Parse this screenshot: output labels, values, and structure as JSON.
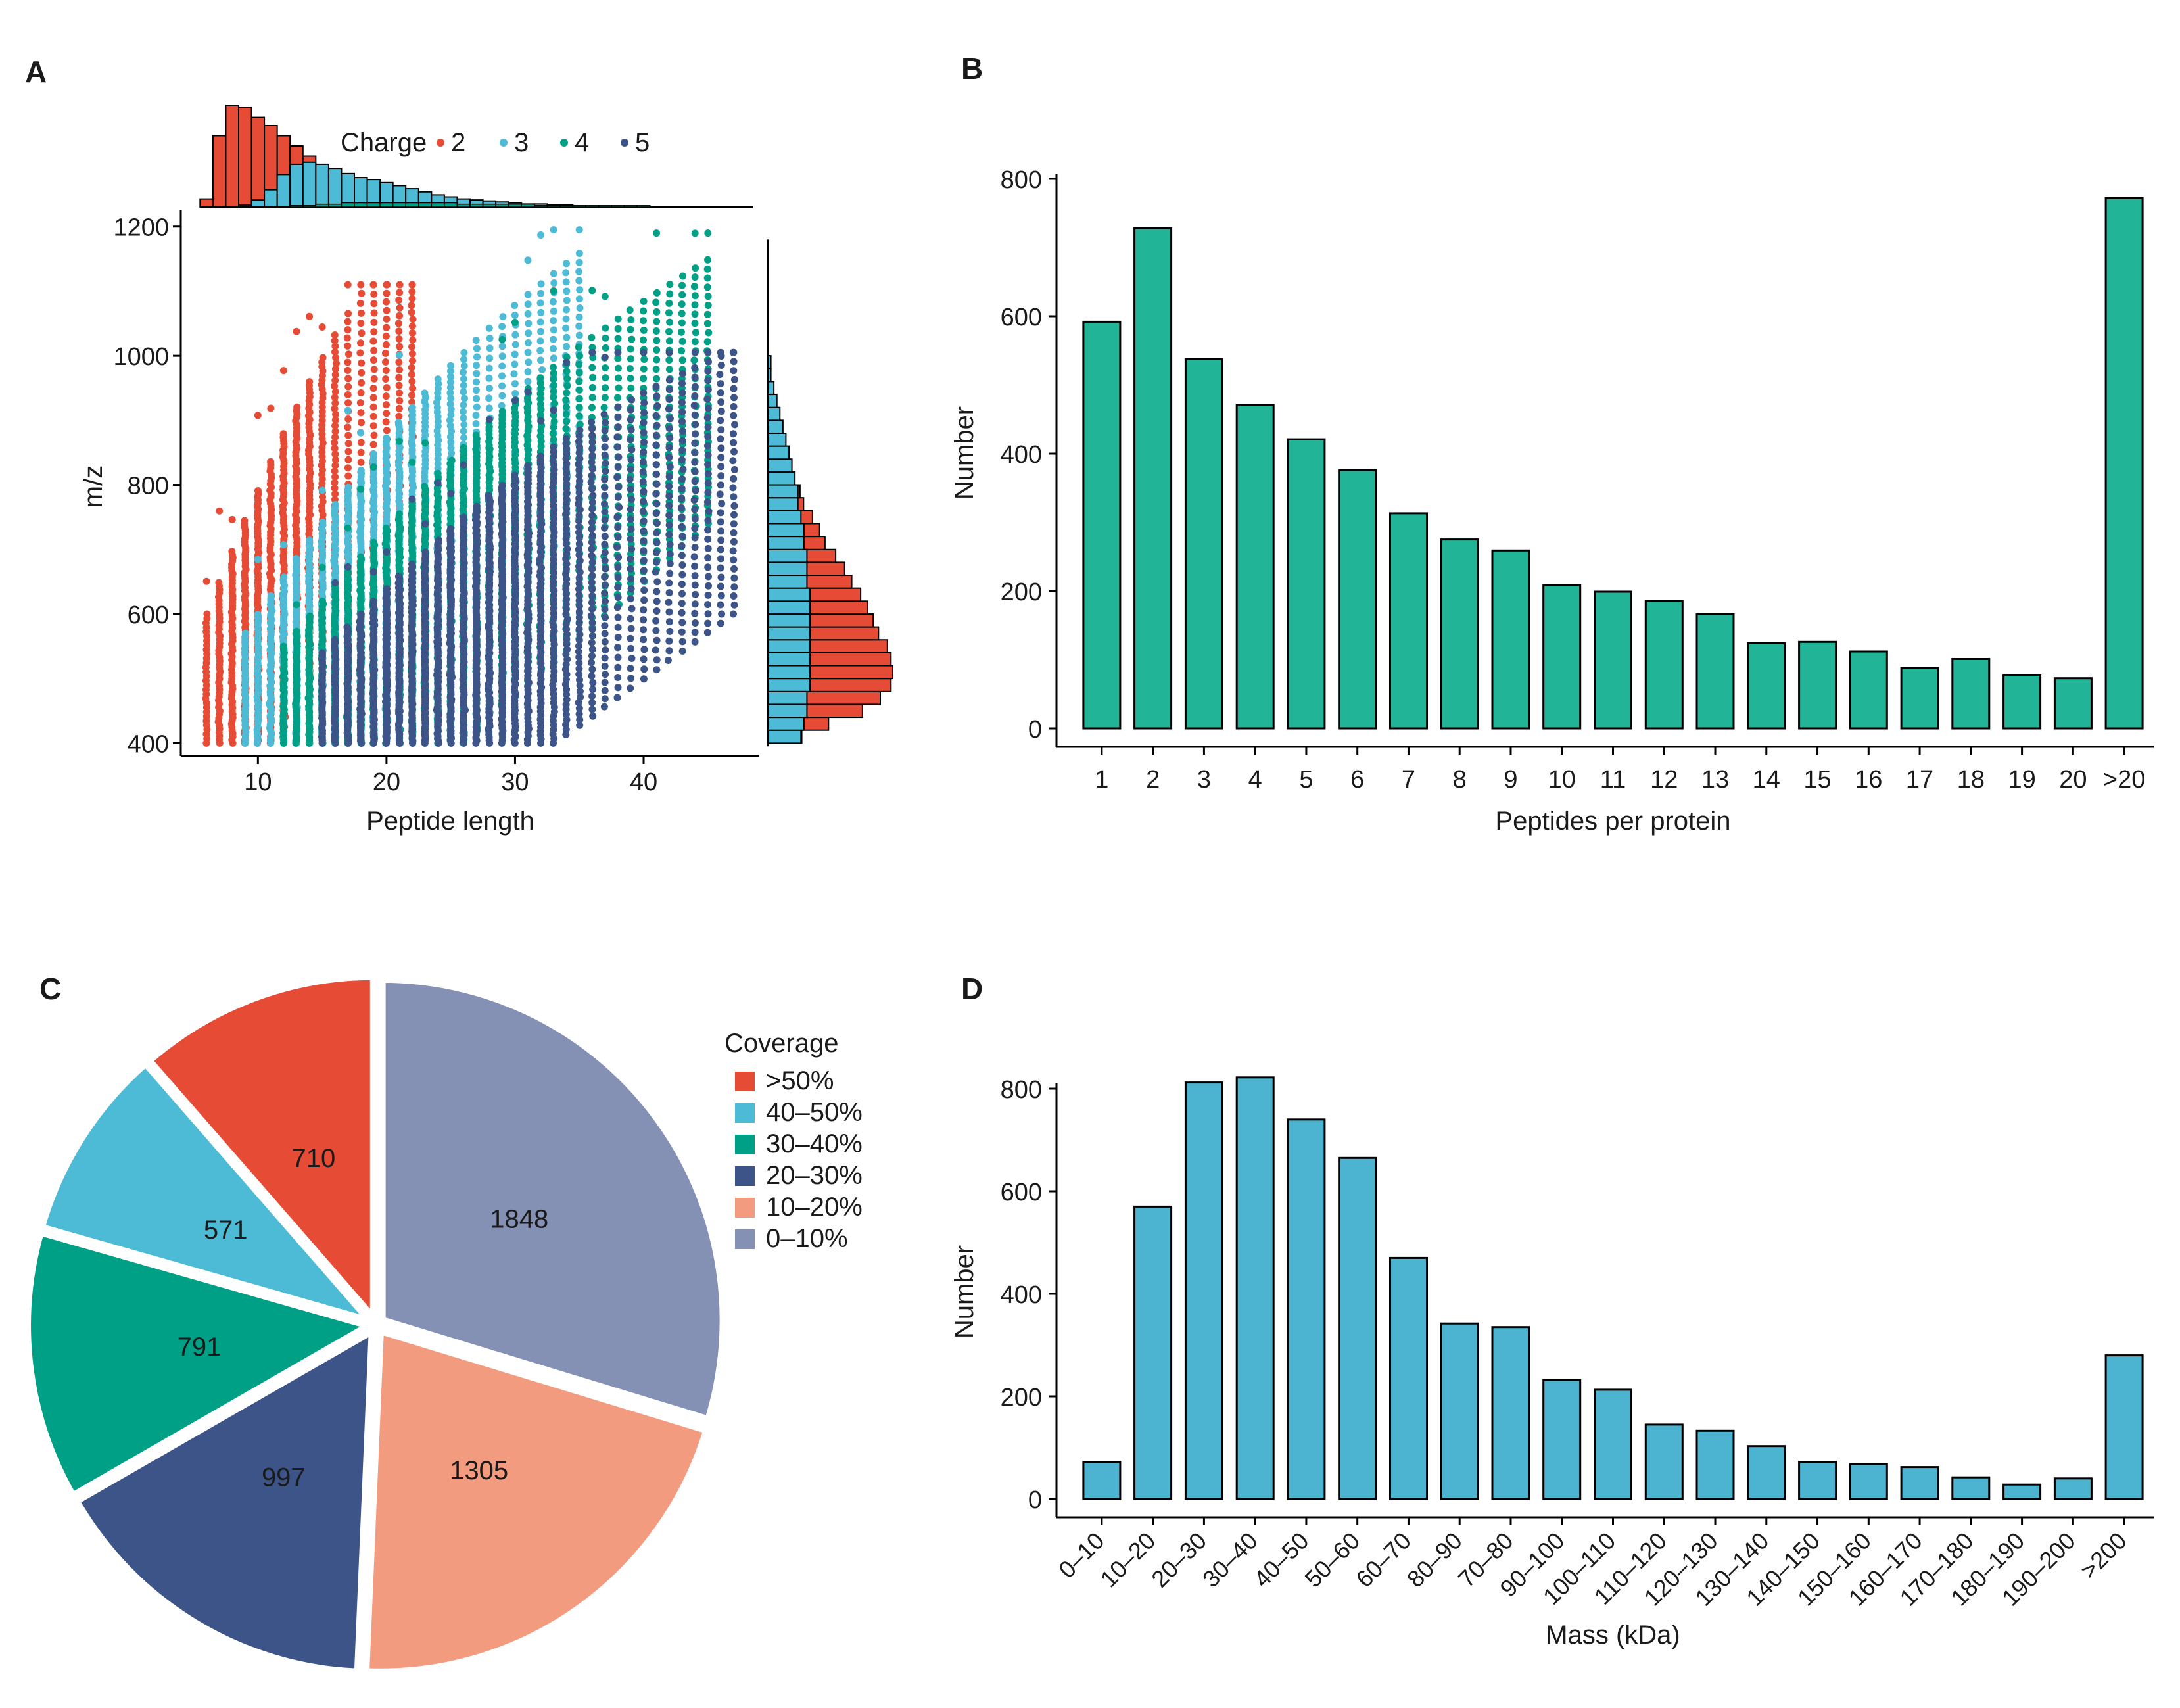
{
  "colors": {
    "charge2": "#e64b35",
    "charge3": "#4dbbd5",
    "charge4": "#00a087",
    "charge5": "#3c5488",
    "panelB_bar": "#21b497",
    "panelD_bar": "#4cb3d0",
    "pie": [
      "#e64b35",
      "#4dbbd5",
      "#00a087",
      "#3c5488",
      "#f39b7f",
      "#8491b4"
    ]
  },
  "chart_data": [
    {
      "id": "A",
      "panel_label": "A",
      "type": "scatter",
      "xlabel": "Peptide length",
      "ylabel": "m/z",
      "xlim": [
        4,
        49
      ],
      "ylim": [
        380,
        1215
      ],
      "xticks": [
        10,
        20,
        30,
        40
      ],
      "yticks": [
        400,
        600,
        800,
        1000,
        1200
      ],
      "legend_title": "Charge",
      "series": [
        {
          "name": "2",
          "lengths": [
            6,
            22
          ],
          "min_mz": 400,
          "max_mz": 1110,
          "mean_mz": [
            460,
            1060
          ]
        },
        {
          "name": "3",
          "lengths": [
            9,
            35
          ],
          "min_mz": 400,
          "max_mz": 1195,
          "mean_mz": [
            430,
            1010
          ]
        },
        {
          "name": "4",
          "lengths": [
            12,
            45
          ],
          "min_mz": 400,
          "max_mz": 1190,
          "mean_mz": [
            410,
            1000
          ]
        },
        {
          "name": "5",
          "lengths": [
            15,
            47
          ],
          "min_mz": 400,
          "max_mz": 1005,
          "mean_mz": [
            400,
            860
          ]
        }
      ],
      "top_histogram": {
        "bins": [
          6,
          7,
          8,
          9,
          10,
          11,
          12,
          13,
          14,
          15,
          16,
          17,
          18,
          19,
          20,
          21,
          22,
          23,
          24,
          25,
          26,
          27,
          28,
          29,
          30,
          31,
          32,
          33,
          34,
          35,
          36,
          37,
          38,
          39,
          40,
          41,
          42,
          43,
          44,
          45,
          46,
          47,
          48
        ],
        "charge2": [
          8,
          70,
          100,
          98,
          88,
          80,
          70,
          60,
          50,
          40,
          32,
          25,
          19,
          14,
          10,
          7,
          5,
          3,
          2,
          1,
          1,
          0,
          0,
          0,
          0,
          0,
          0,
          0,
          0,
          0,
          0,
          0,
          0,
          0,
          0,
          0,
          0,
          0,
          0,
          0,
          0,
          0,
          0
        ],
        "charge3": [
          0,
          0,
          0,
          2,
          7,
          17,
          32,
          42,
          44,
          42,
          38,
          33,
          29,
          27,
          24,
          21,
          18,
          15,
          12,
          10,
          8,
          7,
          6,
          5,
          4,
          3,
          3,
          2,
          2,
          1,
          1,
          1,
          0,
          0,
          0,
          0,
          0,
          0,
          0,
          0,
          0,
          0,
          0
        ],
        "charge4": [
          0,
          0,
          0,
          0,
          0,
          0,
          0,
          1,
          1,
          2,
          2,
          3,
          3,
          3,
          3,
          3,
          3,
          3,
          3,
          3,
          2,
          2,
          2,
          2,
          2,
          2,
          1,
          1,
          1,
          1,
          1,
          1,
          1,
          1,
          1,
          0,
          0,
          0,
          0,
          0,
          0,
          0,
          0
        ]
      },
      "right_histogram": {
        "bins": [
          410,
          430,
          450,
          470,
          490,
          510,
          530,
          550,
          570,
          590,
          610,
          630,
          650,
          670,
          690,
          710,
          730,
          750,
          770,
          790,
          810,
          830,
          850,
          870,
          890,
          910,
          930,
          950,
          970,
          990
        ],
        "charge3": [
          11,
          12,
          13,
          13,
          14,
          14,
          14,
          14,
          14,
          14,
          14,
          14,
          13,
          13,
          13,
          12,
          12,
          11,
          10,
          10,
          9,
          8,
          7,
          6,
          5,
          4,
          3,
          2,
          1,
          1
        ],
        "charge2": [
          8,
          22,
          40,
          50,
          55,
          56,
          55,
          53,
          48,
          45,
          42,
          38,
          34,
          30,
          25,
          20,
          17,
          14,
          10,
          8,
          6,
          4,
          2,
          1,
          0,
          0,
          0,
          0,
          0,
          0
        ]
      }
    },
    {
      "id": "B",
      "panel_label": "B",
      "type": "bar",
      "xlabel": "Peptides per protein",
      "ylabel": "Number",
      "ylim": [
        0,
        800
      ],
      "yticks": [
        0,
        200,
        400,
        600,
        800
      ],
      "categories": [
        "1",
        "2",
        "3",
        "4",
        "5",
        "6",
        "7",
        "8",
        "9",
        "10",
        "11",
        "12",
        "13",
        "14",
        "15",
        "16",
        "17",
        "18",
        "19",
        "20",
        ">20"
      ],
      "values": [
        592,
        728,
        538,
        471,
        421,
        376,
        313,
        275,
        259,
        209,
        199,
        186,
        166,
        124,
        126,
        112,
        88,
        101,
        78,
        73,
        772
      ]
    },
    {
      "id": "C",
      "panel_label": "C",
      "type": "pie",
      "legend_title": "Coverage",
      "categories": [
        ">50%",
        "40–50%",
        "30–40%",
        "20–30%",
        "10–20%",
        "0–10%"
      ],
      "values": [
        710,
        571,
        791,
        997,
        1305,
        1848
      ],
      "value_labels": [
        "710",
        "571",
        "791",
        "997",
        "1305",
        "1848"
      ]
    },
    {
      "id": "D",
      "panel_label": "D",
      "type": "bar",
      "xlabel": "Mass (kDa)",
      "ylabel": "Number",
      "ylim": [
        0,
        800
      ],
      "yticks": [
        0,
        200,
        400,
        600,
        800
      ],
      "categories": [
        "0–10",
        "10–20",
        "20–30",
        "30–40",
        "40–50",
        "50–60",
        "60–70",
        "80–90",
        "70–80",
        "90–100",
        "100–110",
        "110–120",
        "120–130",
        "130–140",
        "140–150",
        "150–160",
        "160–170",
        "170–180",
        "180–190",
        "190–200",
        ">200"
      ],
      "values": [
        72,
        570,
        812,
        822,
        740,
        665,
        470,
        342,
        335,
        232,
        213,
        145,
        133,
        103,
        72,
        68,
        62,
        42,
        28,
        40,
        280
      ]
    }
  ]
}
